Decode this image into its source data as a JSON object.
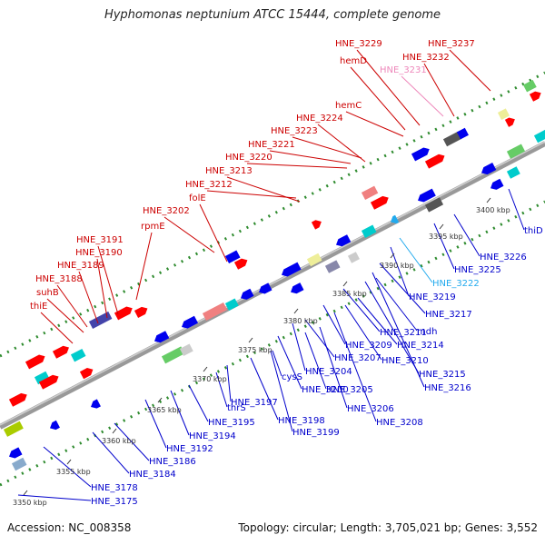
{
  "title": "Hyphomonas neptunium ATCC 15444, complete genome",
  "footer": {
    "accession": "Accession: NC_008358",
    "summary": "Topology: circular; Length: 3,705,021 bp; Genes: 3,552"
  },
  "colors": {
    "upper_label": "#cc0000",
    "lower_label": "#0000cc",
    "rna_label": "#ee88bb",
    "alt_label": "#22aaee",
    "backbone": "#888888",
    "dots": "#2e8b2e"
  },
  "scale_labels": [
    "3350 kbp",
    "3355 kbp",
    "3360 kbp",
    "3365 kbp",
    "3370 kbp",
    "3375 kbp",
    "3380 kbp",
    "3385 kbp",
    "3390 kbp",
    "3395 kbp",
    "3400 kbp"
  ],
  "upper_labels": [
    "thiE",
    "suhB",
    "HNE_3188",
    "HNE_3189",
    "HNE_3190",
    "HNE_3191",
    "rpmE",
    "HNE_3202",
    "folE",
    "HNE_3212",
    "HNE_3213",
    "HNE_3220",
    "HNE_3221",
    "HNE_3223",
    "HNE_3224",
    "hemC",
    "hemD",
    "HNE_3229",
    "HNE_3231",
    "HNE_3232",
    "HNE_3237"
  ],
  "lower_labels": [
    "HNE_3175",
    "HNE_3178",
    "HNE_3184",
    "HNE_3186",
    "HNE_3192",
    "HNE_3194",
    "HNE_3195",
    "thrS",
    "HNE_3197",
    "HNE_3198",
    "HNE_3199",
    "HNE_3200",
    "cysS",
    "HNE_3204",
    "HNE_3205",
    "HNE_3206",
    "HNE_3207",
    "HNE_3208",
    "HNE_3209",
    "HNE_3210",
    "HNE_3211",
    "HNE_3214",
    "mdh",
    "HNE_3215",
    "HNE_3216",
    "HNE_3217",
    "HNE_3219",
    "HNE_3222",
    "HNE_3225",
    "HNE_3226",
    "thiD"
  ]
}
